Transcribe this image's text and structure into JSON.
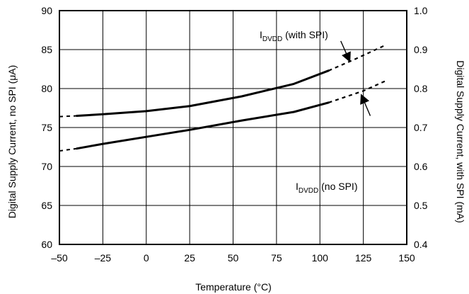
{
  "chart_data": {
    "type": "line",
    "xlabel": "Temperature (°C)",
    "ylabel_left": "Digital Supply Current, no SPI (μA)",
    "ylabel_right": "Digital Supply Current, with SPI (mA)",
    "xlim": [
      -50,
      150
    ],
    "ylim_left": [
      60,
      90
    ],
    "ylim_right": [
      0.4,
      1.0
    ],
    "x_ticks": [
      -50,
      -25,
      0,
      25,
      50,
      75,
      100,
      125,
      150
    ],
    "x_tick_labels": [
      "–50",
      "–25",
      "0",
      "25",
      "50",
      "75",
      "100",
      "125",
      "150"
    ],
    "y_left_ticks": [
      60,
      65,
      70,
      75,
      80,
      85,
      90
    ],
    "y_left_tick_labels": [
      "60",
      "65",
      "70",
      "75",
      "80",
      "85",
      "90"
    ],
    "y_right_ticks": [
      0.4,
      0.5,
      0.6,
      0.7,
      0.8,
      0.9,
      1.0
    ],
    "y_right_tick_labels": [
      "0.4",
      "0.5",
      "0.6",
      "0.7",
      "0.8",
      "0.9",
      "1.0"
    ],
    "grid": true,
    "legend": "none",
    "series": [
      {
        "axis": "right",
        "solid": {
          "x": [
            -40,
            -25,
            0,
            25,
            55,
            85,
            105
          ],
          "y": [
            0.73,
            0.734,
            0.742,
            0.755,
            0.78,
            0.812,
            0.846
          ]
        },
        "dashed": {
          "x": [
            105,
            120,
            138
          ],
          "y": [
            0.846,
            0.875,
            0.912
          ]
        },
        "dashed_lead": {
          "x": [
            -50,
            -40
          ],
          "y": [
            0.728,
            0.73
          ]
        }
      },
      {
        "axis": "left",
        "solid": {
          "x": [
            -40,
            -25,
            0,
            25,
            55,
            85,
            105
          ],
          "y": [
            72.3,
            72.9,
            73.8,
            74.7,
            75.9,
            77.0,
            78.2
          ]
        },
        "dashed": {
          "x": [
            105,
            125,
            138
          ],
          "y": [
            78.2,
            79.7,
            81.0
          ]
        },
        "dashed_lead": {
          "x": [
            -50,
            -40
          ],
          "y": [
            72.0,
            72.3
          ]
        }
      }
    ],
    "annotations": [
      {
        "text_main": "I",
        "text_sub": "DVDD",
        "text_rest": " (with SPI)",
        "arrow_from": [
          112,
          86.1
        ],
        "arrow_to": [
          117,
          83.6
        ]
      },
      {
        "text_main": "I",
        "text_sub": "DVDD",
        "text_rest": " (no SPI)",
        "arrow_from": [
          129,
          76.5
        ],
        "arrow_to": [
          124,
          79.1
        ]
      }
    ]
  }
}
